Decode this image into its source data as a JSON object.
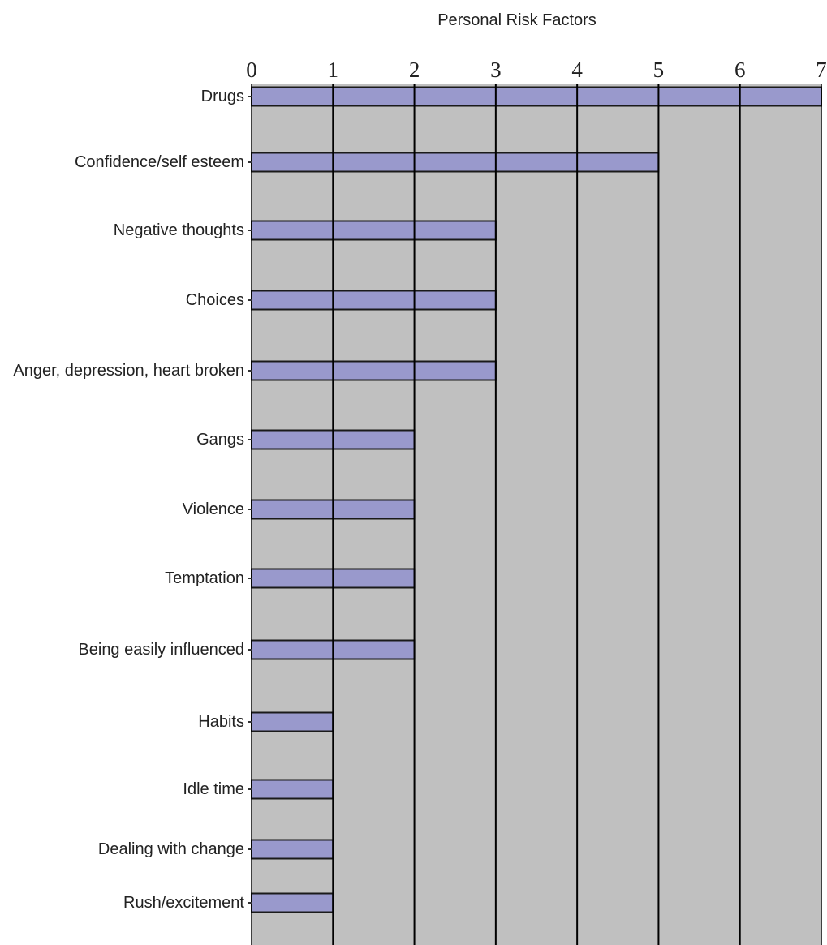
{
  "chart_data": {
    "type": "bar",
    "orientation": "horizontal",
    "title": "Personal Risk Factors",
    "xlabel": "",
    "ylabel": "",
    "xlim": [
      0,
      7
    ],
    "x_ticks": [
      "0",
      "1",
      "2",
      "3",
      "4",
      "5",
      "6",
      "7"
    ],
    "tick_position": "top",
    "grid": true,
    "categories": [
      "Drugs",
      "Confidence/self esteem",
      "Negative thoughts",
      "Choices",
      "Anger, depression, heart broken",
      "Gangs",
      "Violence",
      "Temptation",
      "Being easily influenced",
      "Habits",
      "Idle time",
      "Dealing with change",
      "Rush/excitement"
    ],
    "values": [
      7,
      5,
      3,
      3,
      3,
      2,
      2,
      2,
      2,
      1,
      1,
      1,
      1
    ]
  },
  "colors": {
    "bar_fill": "#9999cc",
    "plot_background": "#c0c0c0",
    "gridline": "#000000",
    "bar_edge": "#1a1a1a"
  }
}
